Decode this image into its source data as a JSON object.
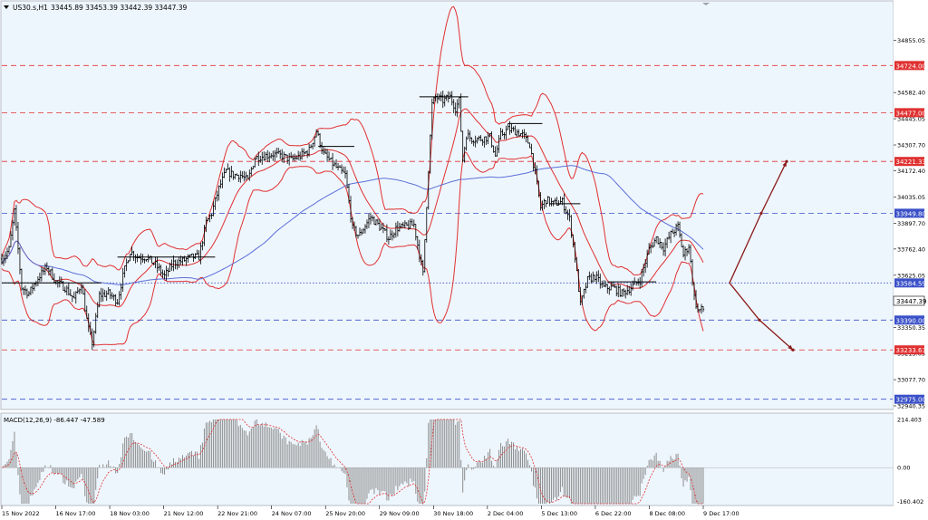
{
  "header": {
    "symbol_label": "US30.s,H1",
    "ohlc": "33445.89 33453.39 33442.39 33447.39"
  },
  "colors": {
    "background": "#eef6fd",
    "candle": "#000000",
    "bollinger": "#e03030",
    "ma": "#5b6fd8",
    "red_level": "#e03030",
    "blue_level": "#3a50c8",
    "arrow": "#8b1a1a",
    "macd_hist": "#8c8c8c",
    "macd_signal": "#e03030"
  },
  "chart_data": [
    {
      "type": "candlestick",
      "panel": "price",
      "ylim": [
        32940.35,
        34925
      ],
      "y_ticks": [
        "34855.05",
        "34582.40",
        "34445.05",
        "34307.70",
        "34172.40",
        "34035.05",
        "33897.70",
        "33762.40",
        "33625.05",
        "33487.70",
        "33350.35",
        "33215.05",
        "33077.70",
        "32940.35"
      ],
      "x_tick_labels": [
        "15 Nov 2022",
        "16 Nov 17:00",
        "18 Nov 03:00",
        "21 Nov 12:00",
        "22 Nov 21:00",
        "24 Nov 07:00",
        "25 Nov 20:00",
        "29 Nov 09:00",
        "30 Nov 18:00",
        "2 Dec 04:00",
        "5 Dec 13:00",
        "6 Dec 22:00",
        "8 Dec 08:00",
        "9 Dec 17:00"
      ],
      "current_price": "33447.39",
      "levels": [
        {
          "price": 34724.0,
          "label": "34724.00",
          "color": "red",
          "style": "dashed"
        },
        {
          "price": 34477.0,
          "label": "34477.00",
          "color": "red",
          "style": "dashed"
        },
        {
          "price": 34221.33,
          "label": "34221.33",
          "color": "red",
          "style": "dashed"
        },
        {
          "price": 33949.8,
          "label": "33949.80",
          "color": "blue",
          "style": "dashed"
        },
        {
          "price": 33584.59,
          "label": "33584.59",
          "color": "blue",
          "style": "dotted"
        },
        {
          "price": 33390.0,
          "label": "33390.00",
          "color": "blue",
          "style": "dashed"
        },
        {
          "price": 33233.63,
          "label": "33233.63",
          "color": "red",
          "style": "dashed"
        },
        {
          "price": 32975.0,
          "label": "32975.00",
          "color": "blue",
          "style": "dashed"
        }
      ],
      "close_path": [
        [
          0,
          33710
        ],
        [
          8,
          33760
        ],
        [
          14,
          33960
        ],
        [
          22,
          33560
        ],
        [
          30,
          33530
        ],
        [
          40,
          33610
        ],
        [
          50,
          33670
        ],
        [
          60,
          33590
        ],
        [
          70,
          33560
        ],
        [
          80,
          33500
        ],
        [
          88,
          33580
        ],
        [
          95,
          33360
        ],
        [
          100,
          33270
        ],
        [
          108,
          33520
        ],
        [
          118,
          33530
        ],
        [
          128,
          33490
        ],
        [
          135,
          33640
        ],
        [
          142,
          33750
        ],
        [
          150,
          33720
        ],
        [
          160,
          33720
        ],
        [
          170,
          33680
        ],
        [
          180,
          33620
        ],
        [
          190,
          33690
        ],
        [
          200,
          33700
        ],
        [
          210,
          33720
        ],
        [
          218,
          33720
        ],
        [
          226,
          33900
        ],
        [
          232,
          33950
        ],
        [
          240,
          34080
        ],
        [
          248,
          34170
        ],
        [
          256,
          34150
        ],
        [
          264,
          34150
        ],
        [
          272,
          34120
        ],
        [
          280,
          34240
        ],
        [
          290,
          34250
        ],
        [
          300,
          34260
        ],
        [
          310,
          34250
        ],
        [
          320,
          34230
        ],
        [
          330,
          34250
        ],
        [
          340,
          34280
        ],
        [
          348,
          34380
        ],
        [
          356,
          34260
        ],
        [
          364,
          34220
        ],
        [
          372,
          34180
        ],
        [
          380,
          34150
        ],
        [
          388,
          33870
        ],
        [
          395,
          33830
        ],
        [
          400,
          33870
        ],
        [
          408,
          33930
        ],
        [
          418,
          33880
        ],
        [
          428,
          33820
        ],
        [
          436,
          33870
        ],
        [
          446,
          33880
        ],
        [
          456,
          33890
        ],
        [
          466,
          33630
        ],
        [
          472,
          34180
        ],
        [
          476,
          34520
        ],
        [
          480,
          34560
        ],
        [
          488,
          34540
        ],
        [
          496,
          34560
        ],
        [
          502,
          34500
        ],
        [
          506,
          34540
        ],
        [
          510,
          34230
        ],
        [
          514,
          34360
        ],
        [
          520,
          34340
        ],
        [
          530,
          34340
        ],
        [
          540,
          34350
        ],
        [
          546,
          34250
        ],
        [
          552,
          34360
        ],
        [
          560,
          34390
        ],
        [
          568,
          34380
        ],
        [
          576,
          34360
        ],
        [
          584,
          34310
        ],
        [
          590,
          34160
        ],
        [
          596,
          33980
        ],
        [
          602,
          34020
        ],
        [
          610,
          34000
        ],
        [
          620,
          34010
        ],
        [
          628,
          33920
        ],
        [
          634,
          33720
        ],
        [
          640,
          33470
        ],
        [
          648,
          33600
        ],
        [
          656,
          33620
        ],
        [
          666,
          33560
        ],
        [
          676,
          33560
        ],
        [
          686,
          33530
        ],
        [
          696,
          33560
        ],
        [
          706,
          33600
        ],
        [
          716,
          33760
        ],
        [
          724,
          33820
        ],
        [
          732,
          33770
        ],
        [
          740,
          33840
        ],
        [
          748,
          33880
        ],
        [
          754,
          33730
        ],
        [
          760,
          33780
        ],
        [
          766,
          33510
        ],
        [
          770,
          33440
        ],
        [
          776,
          33447
        ]
      ]
    },
    {
      "type": "macd",
      "panel": "indicator",
      "title": "MACD(12,26,9) -86.447 -47.589",
      "ylim": [
        -160.402,
        214.403
      ],
      "y_ticks": [
        "214.403",
        "0.00",
        "-160.402"
      ]
    }
  ]
}
